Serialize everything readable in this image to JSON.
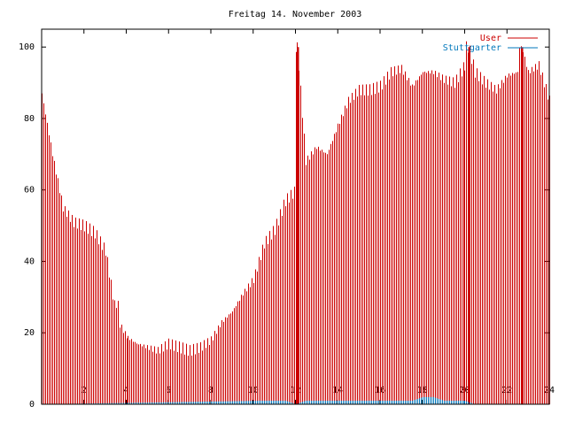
{
  "chart_data": {
    "type": "bar",
    "title": "Freitag 14. November 2003",
    "xlabel": "",
    "ylabel": "",
    "xlim": [
      0,
      24
    ],
    "ylim": [
      0,
      105
    ],
    "x_ticks": [
      2,
      4,
      6,
      8,
      10,
      12,
      14,
      16,
      18,
      20,
      22,
      24
    ],
    "x_tick_labels": [
      "2",
      "4",
      "6",
      "8",
      "10",
      "12",
      "14",
      "16",
      "18",
      "20",
      "22",
      "24"
    ],
    "y_ticks": [
      0,
      20,
      40,
      60,
      80,
      100
    ],
    "y_tick_labels": [
      "0",
      "20",
      "40",
      "60",
      "80",
      "100"
    ],
    "grid": false,
    "legend_position": "top-right",
    "series": [
      {
        "name": "User",
        "color": "#cc0000",
        "style": "impulses",
        "points": [
          [
            0.0,
            87
          ],
          [
            0.5,
            70
          ],
          [
            1.0,
            55
          ],
          [
            1.5,
            51
          ],
          [
            2.0,
            50
          ],
          [
            2.5,
            48
          ],
          [
            3.0,
            43
          ],
          [
            3.4,
            28
          ],
          [
            3.6,
            23
          ],
          [
            4.0,
            19
          ],
          [
            4.5,
            17
          ],
          [
            5.0,
            16
          ],
          [
            5.5,
            15
          ],
          [
            6.0,
            17
          ],
          [
            6.5,
            16
          ],
          [
            7.0,
            15
          ],
          [
            7.5,
            16
          ],
          [
            8.0,
            18
          ],
          [
            8.5,
            23
          ],
          [
            9.0,
            26
          ],
          [
            9.5,
            31
          ],
          [
            10.0,
            35
          ],
          [
            10.5,
            45
          ],
          [
            11.0,
            49
          ],
          [
            11.5,
            57
          ],
          [
            12.0,
            60
          ],
          [
            12.1,
            100
          ],
          [
            12.5,
            68
          ],
          [
            13.0,
            72
          ],
          [
            13.5,
            70
          ],
          [
            14.0,
            78
          ],
          [
            14.5,
            85
          ],
          [
            15.0,
            88
          ],
          [
            15.5,
            88
          ],
          [
            16.0,
            89
          ],
          [
            16.5,
            93
          ],
          [
            17.0,
            94
          ],
          [
            17.5,
            89
          ],
          [
            18.0,
            93
          ],
          [
            18.5,
            93
          ],
          [
            19.0,
            91
          ],
          [
            19.5,
            90
          ],
          [
            20.0,
            95
          ],
          [
            20.2,
            100
          ],
          [
            20.5,
            93
          ],
          [
            21.0,
            90
          ],
          [
            21.5,
            88
          ],
          [
            22.0,
            92
          ],
          [
            22.5,
            93
          ],
          [
            22.7,
            100
          ],
          [
            23.0,
            93
          ],
          [
            23.5,
            95
          ],
          [
            24.0,
            85
          ]
        ]
      },
      {
        "name": "Stuttgarter",
        "color": "#0077bb",
        "style": "impulses",
        "points": [
          [
            0.0,
            0
          ],
          [
            10.5,
            1
          ],
          [
            11.5,
            1
          ],
          [
            12.0,
            0
          ],
          [
            12.5,
            1
          ],
          [
            14.0,
            1
          ],
          [
            16.0,
            1
          ],
          [
            17.5,
            1
          ],
          [
            18.0,
            2
          ],
          [
            18.5,
            2
          ],
          [
            19.0,
            1
          ],
          [
            20.0,
            1
          ],
          [
            20.5,
            0
          ],
          [
            24.0,
            0
          ]
        ]
      }
    ]
  }
}
